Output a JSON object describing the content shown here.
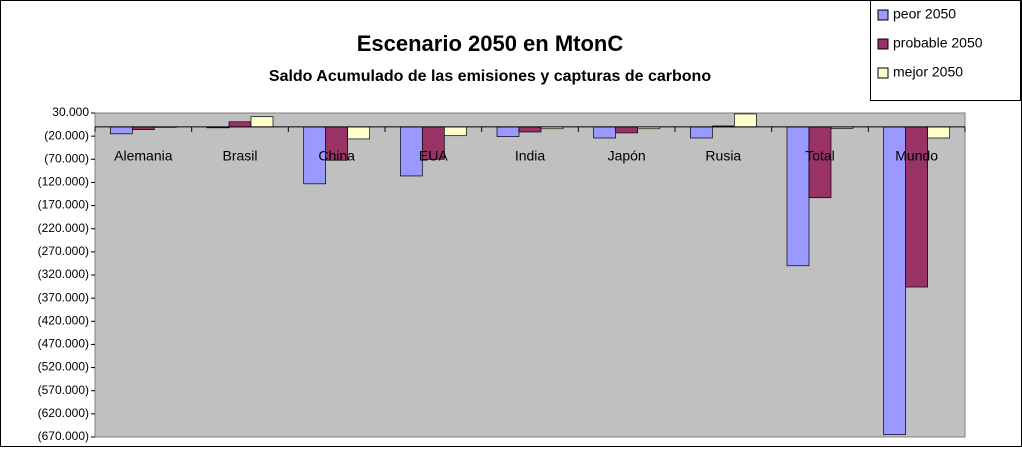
{
  "chart_data": {
    "type": "bar",
    "title": "Escenario 2050 en MtonC",
    "subtitle": "Saldo Acumulado de las emisiones y capturas de carbono",
    "categories": [
      "Alemania",
      "Brasil",
      "China",
      "EUA",
      "India",
      "Japón",
      "Rusia",
      "Total",
      "Mundo"
    ],
    "series": [
      {
        "name": "peor 2050",
        "color": "#9999ff",
        "values": [
          -15000,
          -2000,
          -123000,
          -106000,
          -21000,
          -24000,
          -24000,
          -300000,
          -665000
        ]
      },
      {
        "name": "probable 2050",
        "color": "#993366",
        "values": [
          -6000,
          11000,
          -72000,
          -70000,
          -11000,
          -13000,
          2000,
          -153000,
          -346000
        ]
      },
      {
        "name": "mejor 2050",
        "color": "#ffffcc",
        "values": [
          -1000,
          22000,
          -26000,
          -19000,
          -4000,
          -4000,
          28000,
          -3000,
          -24000
        ]
      }
    ],
    "ylim": [
      -670000,
      30000
    ],
    "yticks": [
      {
        "value": 30000,
        "label": "30.000"
      },
      {
        "value": -20000,
        "label": "(20.000)"
      },
      {
        "value": -70000,
        "label": "(70.000)"
      },
      {
        "value": -120000,
        "label": "(120.000)"
      },
      {
        "value": -170000,
        "label": "(170.000)"
      },
      {
        "value": -220000,
        "label": "(220.000)"
      },
      {
        "value": -270000,
        "label": "(270.000)"
      },
      {
        "value": -320000,
        "label": "(320.000)"
      },
      {
        "value": -370000,
        "label": "(370.000)"
      },
      {
        "value": -420000,
        "label": "(420.000)"
      },
      {
        "value": -470000,
        "label": "(470.000)"
      },
      {
        "value": -520000,
        "label": "(520.000)"
      },
      {
        "value": -570000,
        "label": "(570.000)"
      },
      {
        "value": -620000,
        "label": "(620.000)"
      },
      {
        "value": -670000,
        "label": "(670.000)"
      }
    ],
    "grid": false,
    "legend": "top-right",
    "plot_color": "#c0c0c0"
  }
}
